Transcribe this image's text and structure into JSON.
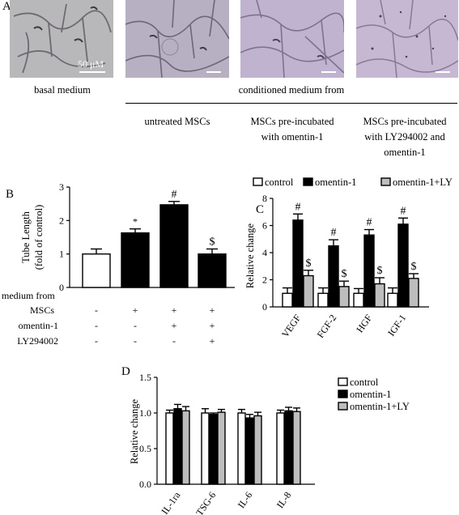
{
  "panel_a": {
    "letter": "A",
    "scale_label": "50 μM",
    "images": [
      {
        "tint": "#b8b7ba"
      },
      {
        "tint": "#b7b0c2"
      },
      {
        "tint": "#c0b3cf"
      },
      {
        "tint": "#c6b8d3"
      }
    ],
    "basal_label": "basal medium",
    "conditioned_label": "conditioned medium from",
    "group_labels": [
      [
        "untreated MSCs"
      ],
      [
        "MSCs pre-incubated",
        "with omentin-1"
      ],
      [
        "MSCs pre-incubated",
        "with LY294002 and",
        "omentin-1"
      ]
    ]
  },
  "chart_data": [
    {
      "panel": "B",
      "type": "bar",
      "ylabel": [
        "Tube Length",
        "(fold of control)"
      ],
      "ylim": [
        0,
        3
      ],
      "yticks": [
        "0",
        "1",
        "2",
        "3"
      ],
      "values": [
        1.0,
        1.63,
        2.47,
        1.0
      ],
      "errors": [
        0.15,
        0.12,
        0.1,
        0.15
      ],
      "annotations": [
        "",
        "*",
        "#",
        "$"
      ],
      "colors": [
        "#ffffff",
        "#000000",
        "#000000",
        "#000000"
      ],
      "table": {
        "title": "medium from",
        "rows": [
          {
            "label": "MSCs",
            "cells": [
              "-",
              "+",
              "+",
              "+"
            ]
          },
          {
            "label": "omentin-1",
            "cells": [
              "-",
              "-",
              "+",
              "+"
            ]
          },
          {
            "label": "LY294002",
            "cells": [
              "-",
              "-",
              "-",
              "+"
            ]
          }
        ]
      }
    },
    {
      "panel": "C",
      "type": "bar",
      "ylabel": "Relative change",
      "ylim": [
        0,
        8
      ],
      "yticks": [
        "0",
        "2",
        "4",
        "6",
        "8"
      ],
      "categories": [
        "VEGF",
        "FGF-2",
        "HGF",
        "IGF-1"
      ],
      "legend": [
        "control",
        "omentin-1",
        "omentin-1+LY"
      ],
      "colors": [
        "#ffffff",
        "#000000",
        "#bdbdbd"
      ],
      "series": [
        {
          "name": "control",
          "values": [
            1.0,
            1.0,
            1.0,
            1.0
          ],
          "errors": [
            0.4,
            0.4,
            0.35,
            0.4
          ],
          "marks": [
            "",
            "",
            "",
            ""
          ]
        },
        {
          "name": "omentin-1",
          "values": [
            6.4,
            4.5,
            5.3,
            6.1
          ],
          "errors": [
            0.45,
            0.45,
            0.4,
            0.45
          ],
          "marks": [
            "#",
            "#",
            "#",
            "#"
          ]
        },
        {
          "name": "omentin-1+LY",
          "values": [
            2.3,
            1.5,
            1.7,
            2.1
          ],
          "errors": [
            0.4,
            0.4,
            0.45,
            0.35
          ],
          "marks": [
            "$",
            "$",
            "$",
            "$"
          ]
        }
      ]
    },
    {
      "panel": "D",
      "type": "bar",
      "ylabel": "Relative change",
      "ylim": [
        0,
        1.5
      ],
      "yticks": [
        "0.0",
        "0.5",
        "1.0",
        "1.5"
      ],
      "categories": [
        "IL-1ra",
        "TSG-6",
        "IL-6",
        "IL-8"
      ],
      "legend": [
        "control",
        "omentin-1",
        "omentin-1+LY"
      ],
      "colors": [
        "#ffffff",
        "#000000",
        "#bdbdbd"
      ],
      "series": [
        {
          "name": "control",
          "values": [
            1.0,
            1.0,
            1.0,
            1.0
          ],
          "errors": [
            0.04,
            0.06,
            0.05,
            0.04
          ]
        },
        {
          "name": "omentin-1",
          "values": [
            1.06,
            0.98,
            0.93,
            1.03
          ],
          "errors": [
            0.06,
            0.02,
            0.05,
            0.05
          ]
        },
        {
          "name": "omentin-1+LY",
          "values": [
            1.03,
            1.01,
            0.96,
            1.02
          ],
          "errors": [
            0.06,
            0.04,
            0.05,
            0.05
          ]
        }
      ]
    }
  ]
}
